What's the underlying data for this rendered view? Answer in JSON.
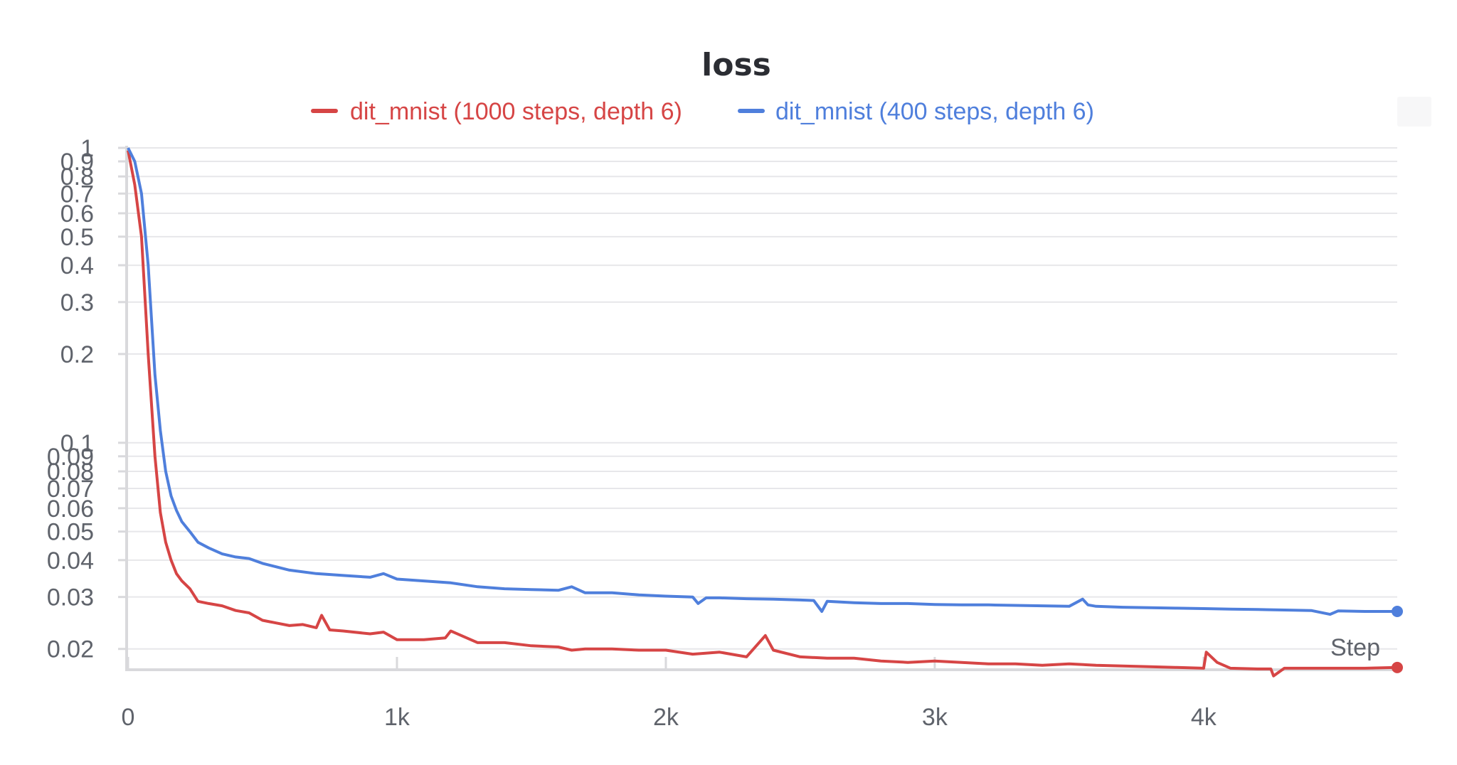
{
  "chart_data": {
    "type": "line",
    "title": "loss",
    "xlabel": "Step",
    "ylabel": "",
    "y_scale": "log",
    "ylim": [
      0.017,
      1.0
    ],
    "xlim": [
      0,
      4720
    ],
    "x_ticks": [
      {
        "value": 0,
        "label": "0"
      },
      {
        "value": 1000,
        "label": "1k"
      },
      {
        "value": 2000,
        "label": "2k"
      },
      {
        "value": 3000,
        "label": "3k"
      },
      {
        "value": 4000,
        "label": "4k"
      }
    ],
    "y_ticks": [
      {
        "value": 1.0,
        "label": "1"
      },
      {
        "value": 0.9,
        "label": "0.9"
      },
      {
        "value": 0.8,
        "label": "0.8"
      },
      {
        "value": 0.7,
        "label": "0.7"
      },
      {
        "value": 0.6,
        "label": "0.6"
      },
      {
        "value": 0.5,
        "label": "0.5"
      },
      {
        "value": 0.4,
        "label": "0.4"
      },
      {
        "value": 0.3,
        "label": "0.3"
      },
      {
        "value": 0.2,
        "label": "0.2"
      },
      {
        "value": 0.1,
        "label": "0.1"
      },
      {
        "value": 0.09,
        "label": "0.09"
      },
      {
        "value": 0.08,
        "label": "0.08"
      },
      {
        "value": 0.07,
        "label": "0.07"
      },
      {
        "value": 0.06,
        "label": "0.06"
      },
      {
        "value": 0.05,
        "label": "0.05"
      },
      {
        "value": 0.04,
        "label": "0.04"
      },
      {
        "value": 0.03,
        "label": "0.03"
      },
      {
        "value": 0.02,
        "label": "0.02"
      }
    ],
    "grid": true,
    "legend_position": "top-center",
    "series": [
      {
        "name": "dit_mnist (1000 steps, depth 6)",
        "color": "#d64545",
        "x": [
          0,
          25,
          50,
          75,
          100,
          120,
          140,
          160,
          180,
          200,
          230,
          260,
          300,
          350,
          400,
          450,
          500,
          550,
          600,
          650,
          700,
          720,
          750,
          800,
          900,
          950,
          1000,
          1100,
          1180,
          1200,
          1300,
          1400,
          1500,
          1600,
          1650,
          1700,
          1800,
          1900,
          2000,
          2100,
          2200,
          2300,
          2370,
          2400,
          2500,
          2600,
          2700,
          2800,
          2900,
          3000,
          3100,
          3200,
          3300,
          3400,
          3500,
          3600,
          3700,
          3800,
          3900,
          4000,
          4010,
          4050,
          4100,
          4200,
          4250,
          4260,
          4300,
          4400,
          4500,
          4600,
          4720
        ],
        "y": [
          0.98,
          0.75,
          0.5,
          0.2,
          0.09,
          0.058,
          0.046,
          0.04,
          0.036,
          0.034,
          0.032,
          0.029,
          0.0285,
          0.028,
          0.027,
          0.0265,
          0.025,
          0.0245,
          0.024,
          0.0242,
          0.0236,
          0.026,
          0.0232,
          0.023,
          0.0225,
          0.0228,
          0.0215,
          0.0215,
          0.0218,
          0.023,
          0.021,
          0.021,
          0.0205,
          0.0203,
          0.0198,
          0.02,
          0.02,
          0.0198,
          0.0198,
          0.0192,
          0.0195,
          0.0188,
          0.0222,
          0.0198,
          0.0188,
          0.0186,
          0.0186,
          0.0182,
          0.018,
          0.0182,
          0.018,
          0.0178,
          0.0178,
          0.0176,
          0.0178,
          0.0176,
          0.0175,
          0.0174,
          0.0173,
          0.0172,
          0.0195,
          0.018,
          0.0172,
          0.0171,
          0.0171,
          0.0162,
          0.0172,
          0.0172,
          0.0172,
          0.0172,
          0.0173
        ]
      },
      {
        "name": "dit_mnist (400 steps, depth 6)",
        "color": "#4f7fdc",
        "x": [
          0,
          25,
          50,
          75,
          100,
          120,
          140,
          160,
          180,
          200,
          230,
          260,
          300,
          350,
          400,
          450,
          500,
          600,
          700,
          800,
          900,
          950,
          1000,
          1100,
          1200,
          1300,
          1400,
          1500,
          1600,
          1650,
          1700,
          1800,
          1900,
          2000,
          2100,
          2120,
          2150,
          2200,
          2300,
          2400,
          2500,
          2550,
          2580,
          2600,
          2700,
          2800,
          2900,
          3000,
          3100,
          3200,
          3300,
          3400,
          3500,
          3550,
          3570,
          3600,
          3700,
          3800,
          3900,
          4000,
          4100,
          4200,
          4300,
          4400,
          4470,
          4500,
          4600,
          4720
        ],
        "y": [
          1.0,
          0.9,
          0.7,
          0.4,
          0.17,
          0.11,
          0.08,
          0.066,
          0.059,
          0.054,
          0.05,
          0.046,
          0.044,
          0.042,
          0.041,
          0.0405,
          0.039,
          0.037,
          0.036,
          0.0355,
          0.035,
          0.036,
          0.0345,
          0.034,
          0.0335,
          0.0325,
          0.032,
          0.0318,
          0.0316,
          0.0325,
          0.031,
          0.031,
          0.0305,
          0.0302,
          0.03,
          0.0285,
          0.0298,
          0.0298,
          0.0296,
          0.0295,
          0.0293,
          0.0292,
          0.0268,
          0.029,
          0.0287,
          0.0285,
          0.0285,
          0.0283,
          0.0282,
          0.0282,
          0.0281,
          0.028,
          0.0279,
          0.0295,
          0.0282,
          0.0279,
          0.0277,
          0.0276,
          0.0275,
          0.0274,
          0.0273,
          0.0272,
          0.0271,
          0.027,
          0.0262,
          0.0269,
          0.0268,
          0.0268
        ]
      }
    ]
  }
}
